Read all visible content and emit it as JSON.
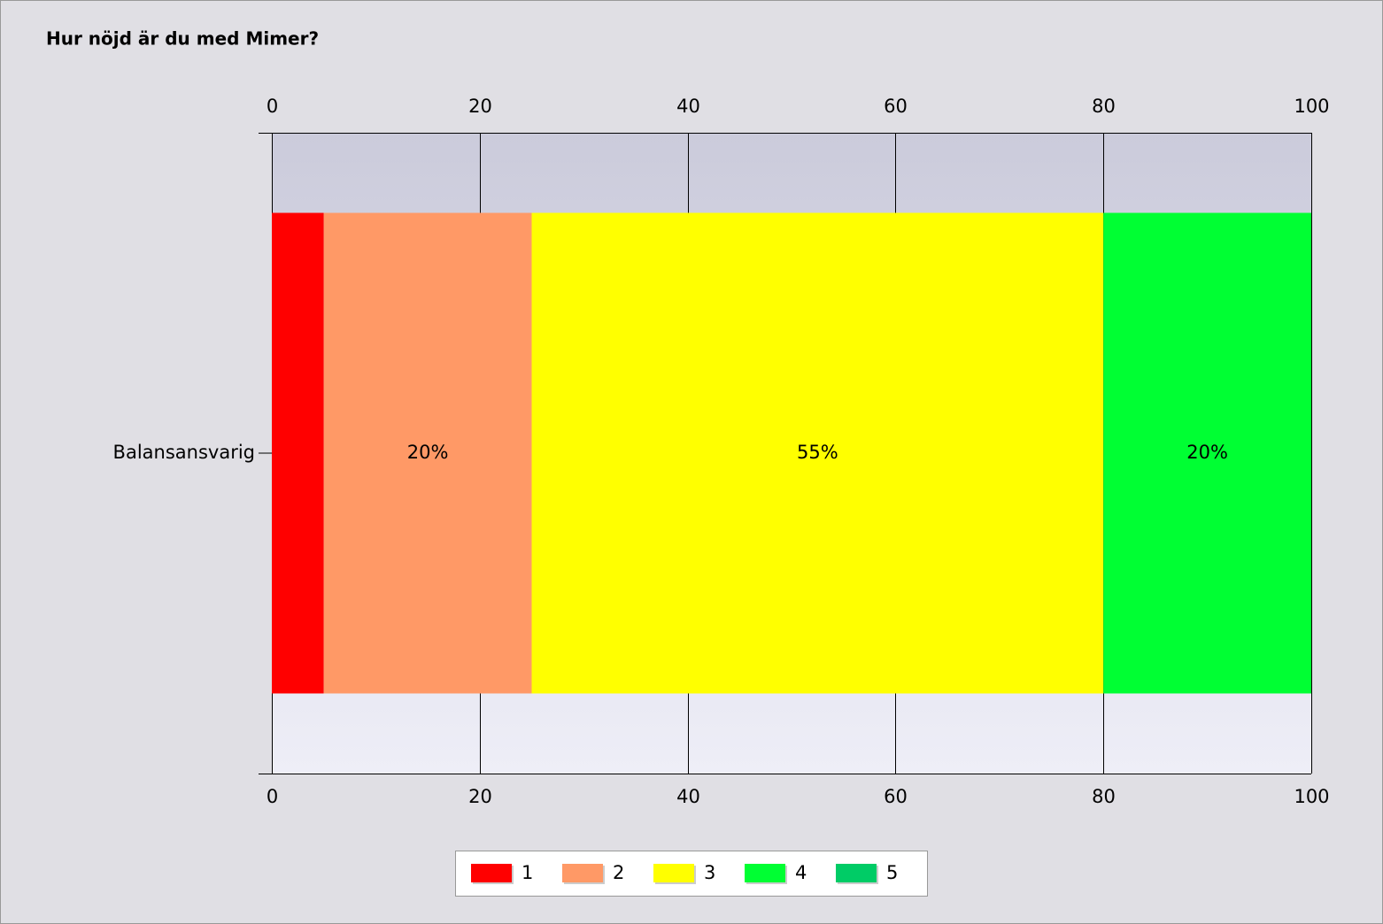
{
  "chart_data": {
    "type": "bar",
    "orientation": "horizontal",
    "stacked": true,
    "title": "Hur nöjd är du med Mimer?",
    "categories": [
      "Balansansvarig"
    ],
    "series": [
      {
        "name": "1",
        "color": "#ff0000",
        "values": [
          5
        ]
      },
      {
        "name": "2",
        "color": "#ff9966",
        "values": [
          20
        ],
        "value_labels": [
          "20%"
        ]
      },
      {
        "name": "3",
        "color": "#ffff00",
        "values": [
          55
        ],
        "value_labels": [
          "55%"
        ]
      },
      {
        "name": "4",
        "color": "#00ff33",
        "values": [
          20
        ],
        "value_labels": [
          "20%"
        ]
      },
      {
        "name": "5",
        "color": "#00cc66",
        "values": [
          0
        ]
      }
    ],
    "xlim": [
      0,
      100
    ],
    "xticks": [
      0,
      20,
      40,
      60,
      80,
      100
    ],
    "grid": true,
    "legend": "bottom"
  }
}
